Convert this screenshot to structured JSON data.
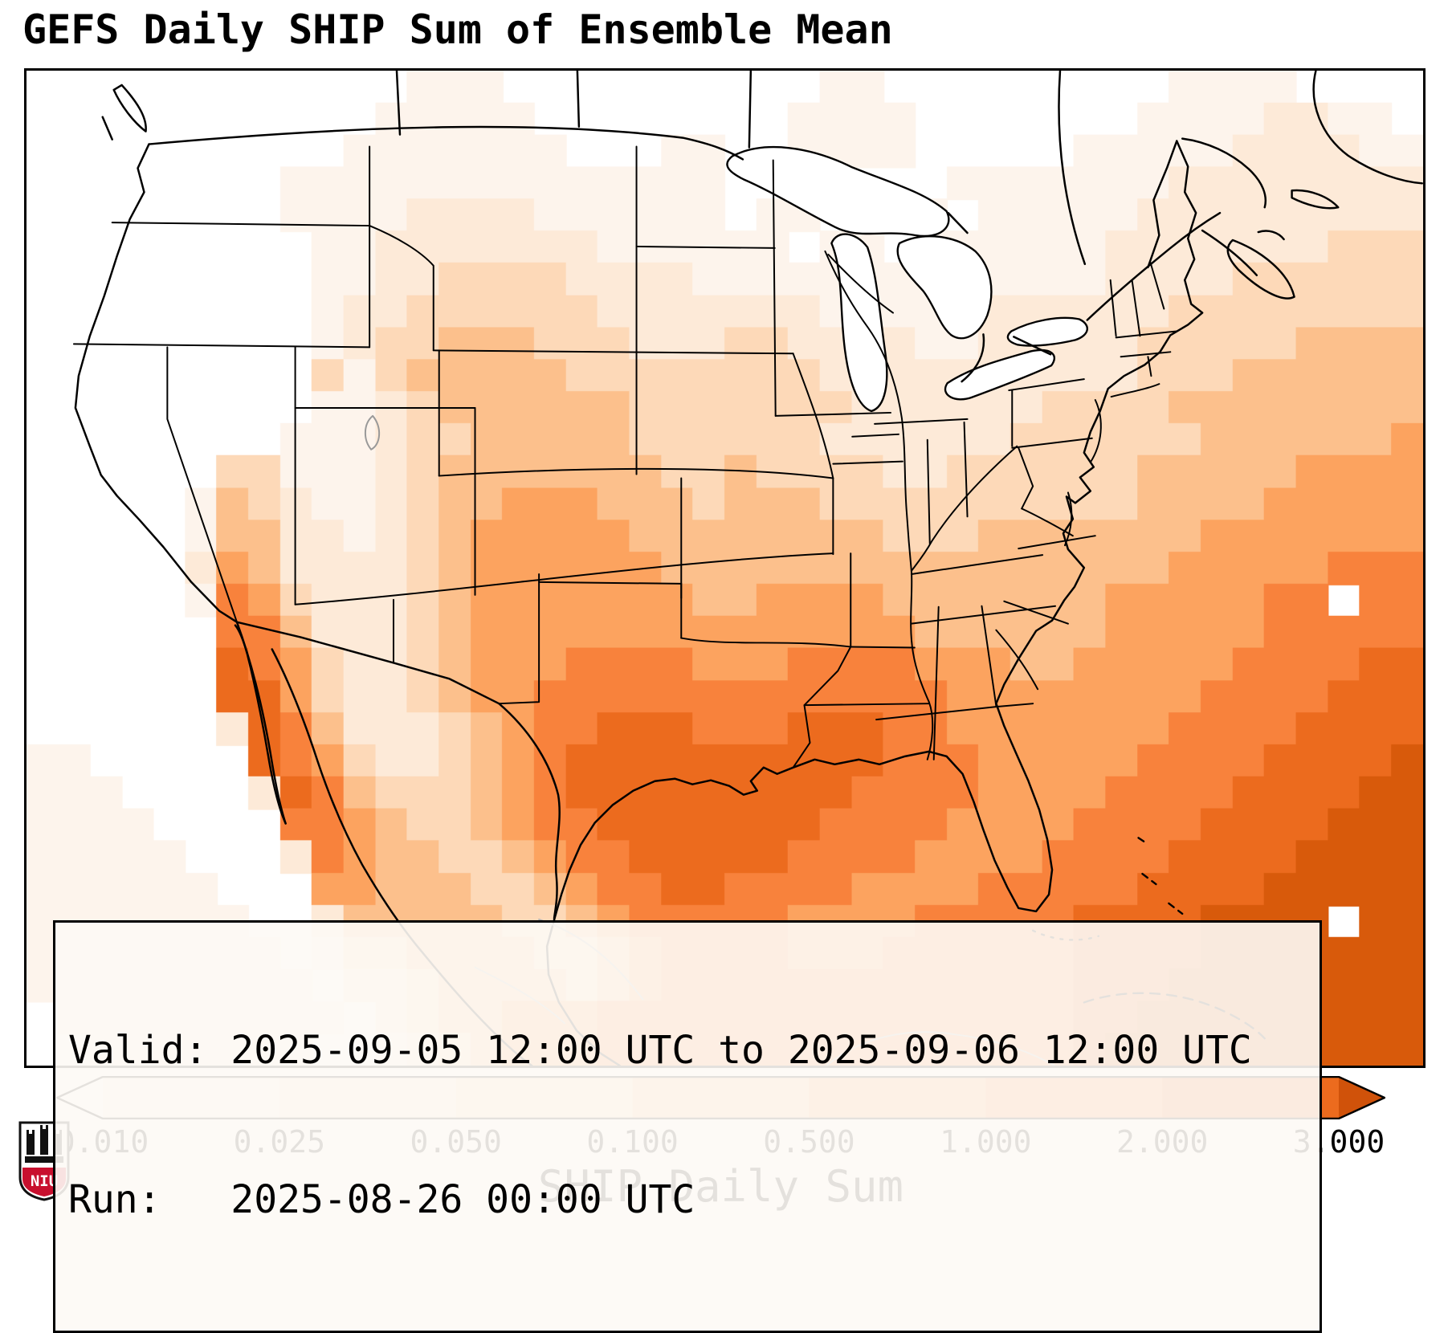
{
  "title": "GEFS Daily SHIP Sum of Ensemble Mean",
  "info_box": {
    "valid_line": "Valid: 2025-09-05 12:00 UTC to 2025-09-06 12:00 UTC",
    "run_line": "Run:   2025-08-26 00:00 UTC"
  },
  "colorbar": {
    "label": "SHIP Daily Sum",
    "ticks": [
      "0.010",
      "0.025",
      "0.050",
      "0.100",
      "0.500",
      "1.000",
      "2.000",
      "3.000"
    ],
    "segment_colors": [
      "#fdf4ec",
      "#fdead8",
      "#fdd9b8",
      "#fcc08c",
      "#fca35f",
      "#f8823c",
      "#ec6b1e"
    ],
    "left_arrow_color": "#ffffff",
    "right_arrow_color": "#d0520a"
  },
  "logo": {
    "text": "NIU"
  },
  "chart_data": {
    "type": "heatmap",
    "title": "GEFS Daily SHIP Sum of Ensemble Mean",
    "variable": "SHIP Daily Sum",
    "valid": "2025-09-05 12:00 UTC to 2025-09-06 12:00 UTC",
    "run": "2025-08-26 00:00 UTC",
    "colorbar_ticks": [
      0.01,
      0.025,
      0.05,
      0.1,
      0.5,
      1.0,
      2.0,
      3.0
    ],
    "palette": [
      "#ffffff",
      "#fdf4ec",
      "#fdead8",
      "#fdd9b8",
      "#fcc08c",
      "#fca35f",
      "#f8823c",
      "#ec6b1e",
      "#d85a0b"
    ],
    "palette_note": "index k = bin between tick k-1 and tick k; 0 = below 0.010",
    "grid_shape": [
      31,
      44
    ],
    "grid_rows": [
      "00000000000011100000000001100000000011110000",
      "00000000000111110000000011110000000111122110 ",
      "00000000001111111000110011110000011111222211",
      "00000000111111111111110000000111111122222222",
      "00000000111122221111110110011011111222222222",
      "00000000011222222211111101101111112222222333",
      "00000000011223333222211111111111112222333333",
      "00000000012233333322222221111122222233333333",
      "00000000012334443332223322221122222333334444",
      "00000000031344444333333332222222222333444444 ",
      "00000000011234444443333333222222333344444444",
      "00000000111233444443333332222223333334444445",
      "00000033111234444444334333322333333444445555",
      "00000143211234455544434443333333333444455555",
      "00000144221234555554444444433344444445555555",
      "00000254222234555555444444444444444455555666",
      "00000165322234555555544555544444445555566 66",
      "00000066422234555555555555554444445555566666",
      "00000076532234555666655566665554455555666677",
      "00000077532234556666666666666555555556666777",
      "00000027642223456677766677766555555566667777",
      "11000007653223456777777777766655555666677778",
      "11100002764333456777777777666655556666777788",
      "11110000665433456677777776666555566667777888",
      "11111000265443345667777766665555666677778888",
      "11111100055444334566776666555566666777788888",
      "11111110024444433456666655556666677778888 88",
      "11111111013344443345666655566666677778888888",
      "11111111102234444345666666666666677788888888",
      "01111111110234455566666666666666677888888888",
      "00111111100123455566666666666666678888888888"
    ]
  }
}
